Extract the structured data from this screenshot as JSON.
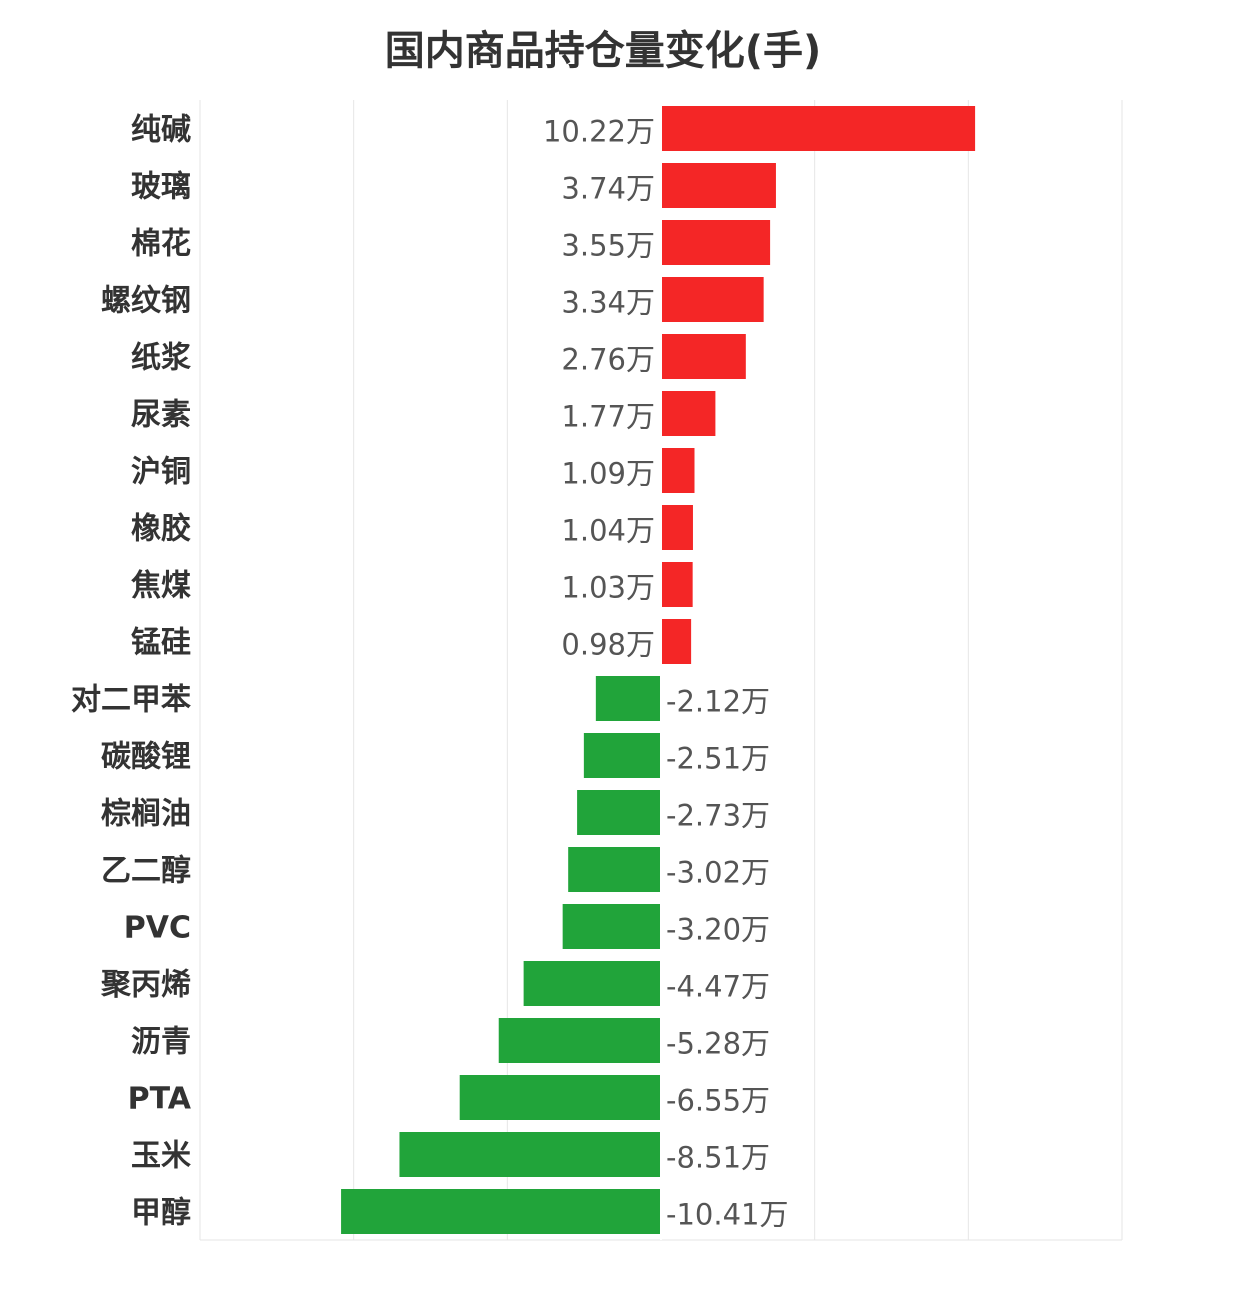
{
  "chart_data": {
    "type": "bar",
    "orientation": "horizontal",
    "title": "国内商品持仓量变化(手)",
    "categories": [
      "纯碱",
      "玻璃",
      "棉花",
      "螺纹钢",
      "纸浆",
      "尿素",
      "沪铜",
      "橡胶",
      "焦煤",
      "锰硅",
      "对二甲苯",
      "碳酸锂",
      "棕榈油",
      "乙二醇",
      "PVC",
      "聚丙烯",
      "沥青",
      "PTA",
      "玉米",
      "甲醇"
    ],
    "values": [
      10.22,
      3.74,
      3.55,
      3.34,
      2.76,
      1.77,
      1.09,
      1.04,
      1.03,
      0.98,
      -2.12,
      -2.51,
      -2.73,
      -3.02,
      -3.2,
      -4.47,
      -5.28,
      -6.55,
      -8.51,
      -10.41
    ],
    "value_labels": [
      "10.22万",
      "3.74万",
      "3.55万",
      "3.34万",
      "2.76万",
      "1.77万",
      "1.09万",
      "1.04万",
      "1.03万",
      "0.98万",
      "-2.12万",
      "-2.51万",
      "-2.73万",
      "-3.02万",
      "-3.20万",
      "-4.47万",
      "-5.28万",
      "-6.55万",
      "-8.51万",
      "-10.41万"
    ],
    "unit": "万",
    "xlim": [
      -15,
      15
    ],
    "grid": true,
    "colors": {
      "positive": "#f42626",
      "negative": "#21a43a",
      "grid": "#e6e6e6"
    }
  }
}
